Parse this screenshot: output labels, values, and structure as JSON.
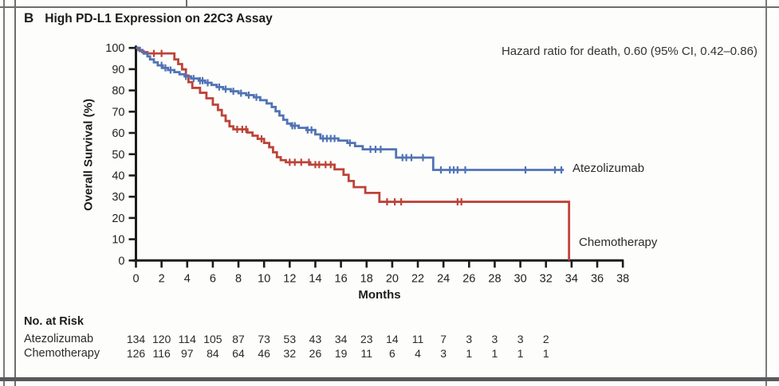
{
  "panel": {
    "letter": "B",
    "title": "High PD-L1 Expression on 22C3 Assay",
    "annotation": "Hazard ratio for death, 0.60 (95% CI, 0.42–0.86)"
  },
  "colors": {
    "atezolizumab": "#5073b4",
    "chemotherapy": "#bd4337",
    "axis": "#1c1c1c",
    "frame": "#6e6e6e"
  },
  "chart_data": {
    "type": "line",
    "subtype": "kaplan-meier-step",
    "title": "High PD-L1 Expression on 22C3 Assay",
    "annotation": "Hazard ratio for death, 0.60 (95% CI, 0.42–0.86)",
    "xlabel": "Months",
    "ylabel": "Overall Survival (%)",
    "xlim": [
      0,
      38
    ],
    "ylim": [
      0,
      100
    ],
    "xticks": [
      0,
      2,
      4,
      6,
      8,
      10,
      12,
      14,
      16,
      18,
      20,
      22,
      24,
      26,
      28,
      30,
      32,
      34,
      36,
      38
    ],
    "yticks": [
      0,
      10,
      20,
      30,
      40,
      50,
      60,
      70,
      80,
      90,
      100
    ],
    "grid": false,
    "legend_position": "inline-right",
    "series": [
      {
        "name": "Atezolizumab",
        "color": "#5073b4",
        "steps": [
          [
            0,
            100
          ],
          [
            0.3,
            98.5
          ],
          [
            0.6,
            97.3
          ],
          [
            0.9,
            96.0
          ],
          [
            1.1,
            94.6
          ],
          [
            1.4,
            93.2
          ],
          [
            1.7,
            91.8
          ],
          [
            2.1,
            90.6
          ],
          [
            2.5,
            89.6
          ],
          [
            3.0,
            88.6
          ],
          [
            3.4,
            87.6
          ],
          [
            3.8,
            86.6
          ],
          [
            4.3,
            85.6
          ],
          [
            4.9,
            84.6
          ],
          [
            5.4,
            83.6
          ],
          [
            5.9,
            82.6
          ],
          [
            6.3,
            81.6
          ],
          [
            6.8,
            80.6
          ],
          [
            7.4,
            79.6
          ],
          [
            8.0,
            78.7
          ],
          [
            8.6,
            77.8
          ],
          [
            9.2,
            76.8
          ],
          [
            9.7,
            75.4
          ],
          [
            10.2,
            73.9
          ],
          [
            10.6,
            72.2
          ],
          [
            10.9,
            70.2
          ],
          [
            11.2,
            68.2
          ],
          [
            11.5,
            66.2
          ],
          [
            11.8,
            64.4
          ],
          [
            12.1,
            63.4
          ],
          [
            12.7,
            62.4
          ],
          [
            13.3,
            61.4
          ],
          [
            14.0,
            59.3
          ],
          [
            14.4,
            57.4
          ],
          [
            15.8,
            56.4
          ],
          [
            16.5,
            55.3
          ],
          [
            17.1,
            53.8
          ],
          [
            17.7,
            52.3
          ],
          [
            20.3,
            48.4
          ],
          [
            23.2,
            42.6
          ]
        ],
        "censor_times": [
          2.0,
          2.3,
          2.7,
          3.9,
          4.5,
          5.0,
          5.2,
          5.6,
          6.5,
          7.0,
          7.6,
          8.2,
          8.8,
          9.4,
          12.2,
          12.4,
          13.4,
          13.7,
          14.6,
          14.9,
          15.2,
          15.5,
          16.7,
          18.3,
          18.7,
          19.1,
          20.8,
          21.1,
          21.5,
          22.4,
          23.8,
          24.5,
          24.8,
          25.1,
          25.7,
          30.4,
          32.7,
          33.2
        ],
        "end_time": 33.4,
        "drops_to_zero": false,
        "label_xy": [
          34.1,
          42.6
        ]
      },
      {
        "name": "Chemotherapy",
        "color": "#bd4337",
        "steps": [
          [
            0,
            100
          ],
          [
            0.2,
            99.0
          ],
          [
            0.5,
            98.0
          ],
          [
            0.9,
            97.4
          ],
          [
            3.0,
            94.6
          ],
          [
            3.3,
            92.4
          ],
          [
            3.6,
            89.9
          ],
          [
            3.9,
            87.0
          ],
          [
            4.1,
            83.9
          ],
          [
            4.4,
            81.2
          ],
          [
            5.0,
            78.9
          ],
          [
            5.5,
            76.3
          ],
          [
            6.0,
            73.3
          ],
          [
            6.4,
            70.8
          ],
          [
            6.7,
            68.2
          ],
          [
            7.0,
            65.6
          ],
          [
            7.3,
            63.1
          ],
          [
            7.6,
            61.7
          ],
          [
            8.7,
            60.2
          ],
          [
            9.1,
            58.7
          ],
          [
            9.5,
            57.2
          ],
          [
            10.0,
            55.3
          ],
          [
            10.4,
            53.3
          ],
          [
            10.7,
            50.9
          ],
          [
            11.0,
            48.6
          ],
          [
            11.3,
            47.2
          ],
          [
            11.7,
            46.2
          ],
          [
            13.6,
            45.1
          ],
          [
            15.5,
            42.9
          ],
          [
            16.2,
            40.3
          ],
          [
            16.6,
            37.4
          ],
          [
            17.0,
            34.5
          ],
          [
            17.9,
            31.8
          ],
          [
            19.0,
            27.6
          ]
        ],
        "censor_times": [
          1.4,
          2.0,
          7.9,
          8.3,
          8.6,
          9.8,
          12.0,
          12.4,
          12.9,
          13.5,
          14.0,
          14.3,
          14.8,
          15.2,
          19.6,
          20.2,
          20.7,
          25.1,
          25.4
        ],
        "end_time": 33.8,
        "drops_to_zero": true,
        "label_xy": [
          34.6,
          9.0
        ]
      }
    ],
    "risk_table": {
      "header": "No. at Risk",
      "months": [
        0,
        2,
        4,
        6,
        8,
        10,
        12,
        14,
        16,
        18,
        20,
        22,
        24,
        26,
        28,
        30,
        32
      ],
      "rows": [
        {
          "name": "Atezolizumab",
          "values": [
            134,
            120,
            114,
            105,
            87,
            73,
            53,
            43,
            34,
            23,
            14,
            11,
            7,
            3,
            3,
            3,
            2
          ]
        },
        {
          "name": "Chemotherapy",
          "values": [
            126,
            116,
            97,
            84,
            64,
            46,
            32,
            26,
            19,
            11,
            6,
            4,
            3,
            1,
            1,
            1,
            1
          ]
        }
      ]
    }
  }
}
